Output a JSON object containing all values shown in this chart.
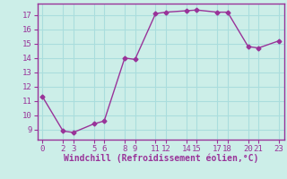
{
  "x": [
    0,
    2,
    3,
    5,
    6,
    8,
    9,
    11,
    12,
    14,
    15,
    17,
    18,
    20,
    21,
    23
  ],
  "y": [
    11.3,
    8.9,
    8.8,
    9.4,
    9.6,
    14.0,
    13.9,
    17.1,
    17.2,
    17.3,
    17.35,
    17.2,
    17.2,
    14.8,
    14.7,
    15.2
  ],
  "line_color": "#993399",
  "marker": "D",
  "marker_size": 2.5,
  "linewidth": 1.0,
  "bg_color": "#cceee8",
  "grid_color": "#aadddd",
  "xlabel": "Windchill (Refroidissement éolien,°C)",
  "xlabel_color": "#993399",
  "xlabel_fontsize": 7,
  "tick_color": "#993399",
  "tick_fontsize": 6.5,
  "xticks": [
    0,
    2,
    3,
    5,
    6,
    8,
    9,
    11,
    12,
    14,
    15,
    17,
    18,
    20,
    21,
    23
  ],
  "yticks": [
    9,
    10,
    11,
    12,
    13,
    14,
    15,
    16,
    17
  ],
  "ylim": [
    8.3,
    17.8
  ],
  "xlim": [
    -0.5,
    23.5
  ]
}
